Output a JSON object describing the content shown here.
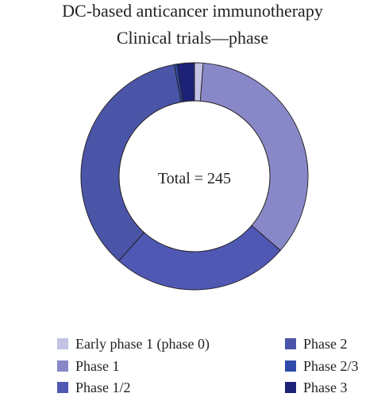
{
  "chart_data": {
    "type": "pie",
    "variant": "donut",
    "title": "DC-based anticancer immunotherapy",
    "subtitle": "Clinical trials—phase",
    "center_label": "Total = 245",
    "slices": [
      {
        "label": "Early phase 1 (phase 0)",
        "value": 3,
        "color": "#c3c3e6"
      },
      {
        "label": "Phase 1",
        "value": 86,
        "color": "#8888c8"
      },
      {
        "label": "Phase 1/2",
        "value": 62,
        "color": "#4f58b3"
      },
      {
        "label": "Phase 2",
        "value": 87,
        "color": "#4b55a8"
      },
      {
        "label": "Phase 2/3",
        "value": 1,
        "color": "#2f4aa8"
      },
      {
        "label": "Phase 3",
        "value": 6,
        "color": "#1e2276"
      }
    ],
    "legend_position": "bottom",
    "legend_order": [
      0,
      1,
      2,
      3,
      4,
      5
    ]
  }
}
